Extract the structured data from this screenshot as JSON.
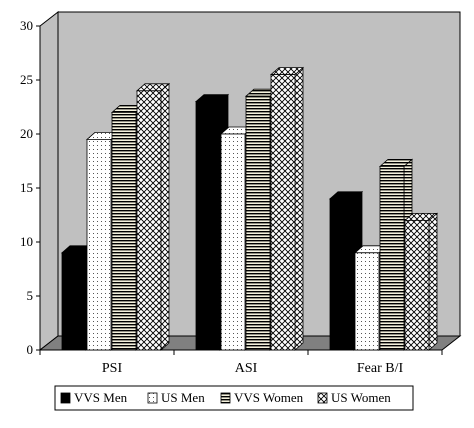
{
  "chart_data": {
    "type": "bar",
    "title": "",
    "xlabel": "",
    "ylabel": "",
    "ylim": [
      0,
      30
    ],
    "yticks": [
      0,
      5,
      10,
      15,
      20,
      25,
      30
    ],
    "grid": false,
    "style": "3d",
    "categories": [
      "PSI",
      "ASI",
      "Fear B/I"
    ],
    "series": [
      {
        "name": "VVS Men",
        "values": [
          9,
          23,
          14
        ],
        "color": "#000000",
        "pattern": "solid-black"
      },
      {
        "name": "US Men",
        "values": [
          19.5,
          20,
          9
        ],
        "color": "#ffffff",
        "pattern": "dots"
      },
      {
        "name": "VVS Women",
        "values": [
          22,
          23.5,
          17
        ],
        "color": "#ffffff",
        "pattern": "horizontal-stripes"
      },
      {
        "name": "US Women",
        "values": [
          24,
          25.5,
          12
        ],
        "color": "#ffffff",
        "pattern": "crosshatch"
      }
    ],
    "legend_position": "bottom",
    "wall_color": "#c0c0c0",
    "floor_color": "#808080"
  }
}
